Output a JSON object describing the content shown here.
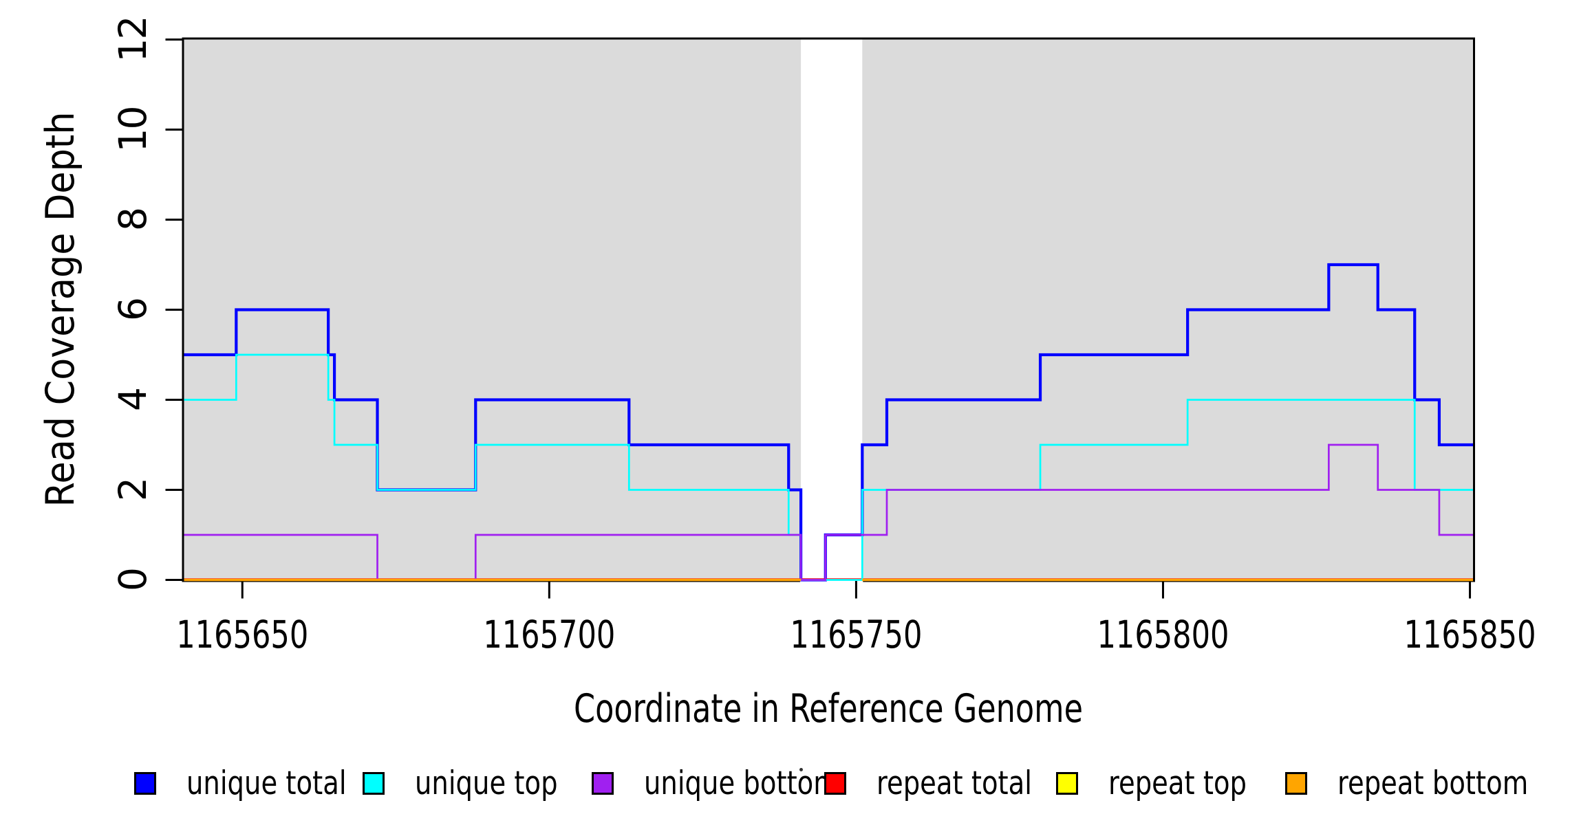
{
  "chart_data": {
    "type": "step-line",
    "title": "",
    "xlabel": "Coordinate in Reference Genome",
    "ylabel": "Read Coverage Depth",
    "xlim": [
      1165640.5,
      1165850.5
    ],
    "ylim": [
      0,
      12
    ],
    "x_ticks": [
      1165650,
      1165700,
      1165750,
      1165800,
      1165850
    ],
    "y_ticks": [
      0,
      2,
      4,
      6,
      8,
      10,
      12
    ],
    "grid": false,
    "legend_position": "bottom",
    "plot_background": "#FFFFFF",
    "shaded_region_color": "#DBDBDB",
    "shaded_regions": [
      {
        "x_from": 1165640.5,
        "x_to": 1165741,
        "color": "#DBDBDB"
      },
      {
        "x_from": 1165751,
        "x_to": 1165850.5,
        "color": "#DBDBDB"
      }
    ],
    "gap_region": {
      "x_from": 1165741,
      "x_to": 1165751
    },
    "series": [
      {
        "name": "unique total",
        "color": "#0000FF",
        "points": [
          [
            1165640.5,
            5
          ],
          [
            1165649,
            6
          ],
          [
            1165664,
            5
          ],
          [
            1165665,
            4
          ],
          [
            1165672,
            2
          ],
          [
            1165688,
            4
          ],
          [
            1165713,
            3
          ],
          [
            1165739,
            2
          ],
          [
            1165741,
            0
          ],
          [
            1165745,
            1
          ],
          [
            1165751,
            3
          ],
          [
            1165755,
            4
          ],
          [
            1165780,
            5
          ],
          [
            1165804,
            6
          ],
          [
            1165827,
            7
          ],
          [
            1165835,
            6
          ],
          [
            1165841,
            4
          ],
          [
            1165845,
            3
          ]
        ]
      },
      {
        "name": "repeat total",
        "color": "#FF0000",
        "points": [
          [
            1165640.5,
            0
          ]
        ]
      },
      {
        "name": "unique top",
        "color": "#00FFFF",
        "points": [
          [
            1165640.5,
            4
          ],
          [
            1165649,
            5
          ],
          [
            1165664,
            4
          ],
          [
            1165665,
            3
          ],
          [
            1165672,
            2
          ],
          [
            1165688,
            3
          ],
          [
            1165713,
            2
          ],
          [
            1165739,
            1
          ],
          [
            1165741,
            0
          ],
          [
            1165751,
            2
          ],
          [
            1165780,
            3
          ],
          [
            1165804,
            4
          ],
          [
            1165841,
            2
          ]
        ]
      },
      {
        "name": "unique bottom",
        "color": "#A020F0",
        "points": [
          [
            1165640.5,
            1
          ],
          [
            1165672,
            0
          ],
          [
            1165688,
            1
          ],
          [
            1165741,
            0
          ],
          [
            1165745,
            1
          ],
          [
            1165755,
            2
          ],
          [
            1165827,
            3
          ],
          [
            1165835,
            2
          ],
          [
            1165845,
            1
          ]
        ]
      },
      {
        "name": "repeat top",
        "color": "#FFFF00",
        "value": 0,
        "segments": [
          [
            1165640.5,
            1165741
          ],
          [
            1165751,
            1165850.5
          ]
        ]
      },
      {
        "name": "repeat bottom",
        "color": "#FFA500",
        "value": 0,
        "segments": [
          [
            1165640.5,
            1165741
          ],
          [
            1165751,
            1165850.5
          ]
        ]
      }
    ],
    "legend": [
      {
        "label": "unique total",
        "color": "#0000FF"
      },
      {
        "label": "unique top",
        "color": "#00FFFF"
      },
      {
        "label": "unique bottom",
        "color": "#A020F0"
      },
      {
        "label": "repeat total",
        "color": "#FF0000"
      },
      {
        "label": "repeat top",
        "color": "#FFFF00"
      },
      {
        "label": "repeat bottom",
        "color": "#FFA500"
      }
    ]
  }
}
